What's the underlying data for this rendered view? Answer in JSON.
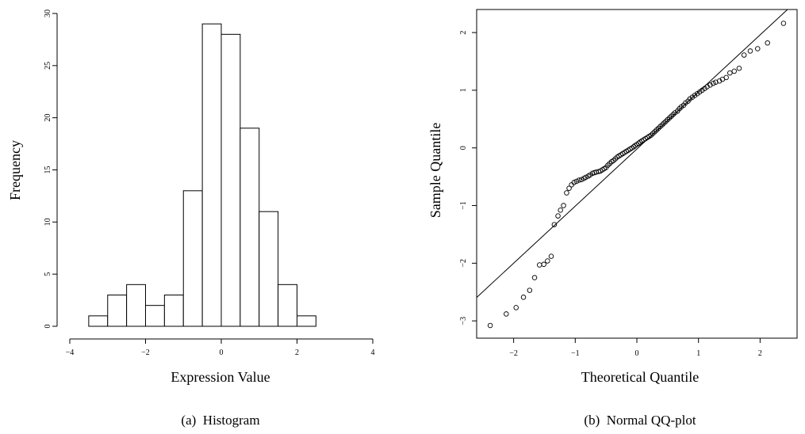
{
  "chart_data": [
    {
      "type": "bar",
      "subtype": "histogram",
      "caption": "(a)  Histogram",
      "title": "",
      "xlabel": "Expression Value",
      "ylabel": "Frequency",
      "bin_edges": [
        -3.5,
        -3.0,
        -2.5,
        -2.0,
        -1.5,
        -1.0,
        -0.5,
        0.0,
        0.5,
        1.0,
        1.5,
        2.0,
        2.5
      ],
      "values": [
        1,
        3,
        4,
        2,
        3,
        13,
        29,
        28,
        19,
        11,
        4,
        1
      ],
      "xlim": [
        -4,
        4
      ],
      "ylim": [
        0,
        30
      ],
      "xticks": [
        -4,
        -2,
        0,
        2,
        4
      ],
      "yticks": [
        0,
        5,
        10,
        15,
        20,
        25,
        30
      ],
      "xtick_labels": [
        "−4",
        "−2",
        "0",
        "2",
        "4"
      ],
      "ytick_labels": [
        "0",
        "5",
        "10",
        "15",
        "20",
        "25",
        "30"
      ],
      "bar_fill": "#ffffff",
      "bar_stroke": "#000000",
      "grid": false
    },
    {
      "type": "scatter",
      "subtype": "qq-plot",
      "caption": "(b)  Normal QQ-plot",
      "title": "",
      "xlabel": "Theoretical Quantile",
      "ylabel": "Sample Quantile",
      "xlim": [
        -2.6,
        2.6
      ],
      "ylim": [
        -3.3,
        2.4
      ],
      "xticks": [
        -2,
        -1,
        0,
        1,
        2
      ],
      "yticks": [
        -3,
        -2,
        -1,
        0,
        1,
        2
      ],
      "xtick_labels": [
        "−2",
        "−1",
        "0",
        "1",
        "2"
      ],
      "ytick_labels": [
        "−3",
        "−2",
        "−1",
        "0",
        "1",
        "2"
      ],
      "reference_line": {
        "slope": 0.99,
        "intercept": -0.02
      },
      "points": {
        "x": [
          -2.38,
          -2.12,
          -1.96,
          -1.84,
          -1.74,
          -1.66,
          -1.58,
          -1.51,
          -1.45,
          -1.39,
          -1.34,
          -1.28,
          -1.24,
          -1.19,
          -1.14,
          -1.1,
          -1.06,
          -1.02,
          -0.98,
          -0.94,
          -0.9,
          -0.86,
          -0.83,
          -0.79,
          -0.76,
          -0.72,
          -0.69,
          -0.66,
          -0.62,
          -0.59,
          -0.56,
          -0.53,
          -0.5,
          -0.47,
          -0.44,
          -0.41,
          -0.38,
          -0.35,
          -0.32,
          -0.29,
          -0.26,
          -0.23,
          -0.2,
          -0.17,
          -0.14,
          -0.11,
          -0.08,
          -0.05,
          -0.03,
          0.0,
          0.03,
          0.05,
          0.08,
          0.11,
          0.14,
          0.17,
          0.2,
          0.23,
          0.26,
          0.29,
          0.32,
          0.35,
          0.38,
          0.41,
          0.44,
          0.47,
          0.5,
          0.53,
          0.56,
          0.59,
          0.62,
          0.66,
          0.69,
          0.72,
          0.76,
          0.79,
          0.83,
          0.86,
          0.9,
          0.94,
          0.98,
          1.02,
          1.06,
          1.1,
          1.14,
          1.19,
          1.24,
          1.28,
          1.34,
          1.39,
          1.45,
          1.51,
          1.58,
          1.66,
          1.74,
          1.84,
          1.96,
          2.12,
          2.38
        ],
        "y": [
          -3.08,
          -2.88,
          -2.77,
          -2.59,
          -2.47,
          -2.25,
          -2.03,
          -2.02,
          -1.96,
          -1.88,
          -1.33,
          -1.18,
          -1.08,
          -1.0,
          -0.78,
          -0.7,
          -0.64,
          -0.6,
          -0.58,
          -0.56,
          -0.55,
          -0.53,
          -0.51,
          -0.49,
          -0.47,
          -0.44,
          -0.43,
          -0.42,
          -0.41,
          -0.4,
          -0.38,
          -0.36,
          -0.34,
          -0.3,
          -0.27,
          -0.24,
          -0.22,
          -0.19,
          -0.16,
          -0.14,
          -0.12,
          -0.1,
          -0.08,
          -0.06,
          -0.04,
          -0.02,
          0.0,
          0.02,
          0.04,
          0.06,
          0.08,
          0.1,
          0.12,
          0.14,
          0.16,
          0.18,
          0.2,
          0.22,
          0.25,
          0.28,
          0.31,
          0.34,
          0.37,
          0.4,
          0.43,
          0.46,
          0.49,
          0.52,
          0.55,
          0.58,
          0.61,
          0.64,
          0.68,
          0.71,
          0.74,
          0.78,
          0.81,
          0.85,
          0.88,
          0.91,
          0.94,
          0.97,
          1.0,
          1.03,
          1.06,
          1.09,
          1.12,
          1.14,
          1.16,
          1.19,
          1.22,
          1.3,
          1.33,
          1.38,
          1.61,
          1.68,
          1.72,
          1.82,
          2.16
        ]
      },
      "marker": "open-circle",
      "grid": false
    }
  ]
}
